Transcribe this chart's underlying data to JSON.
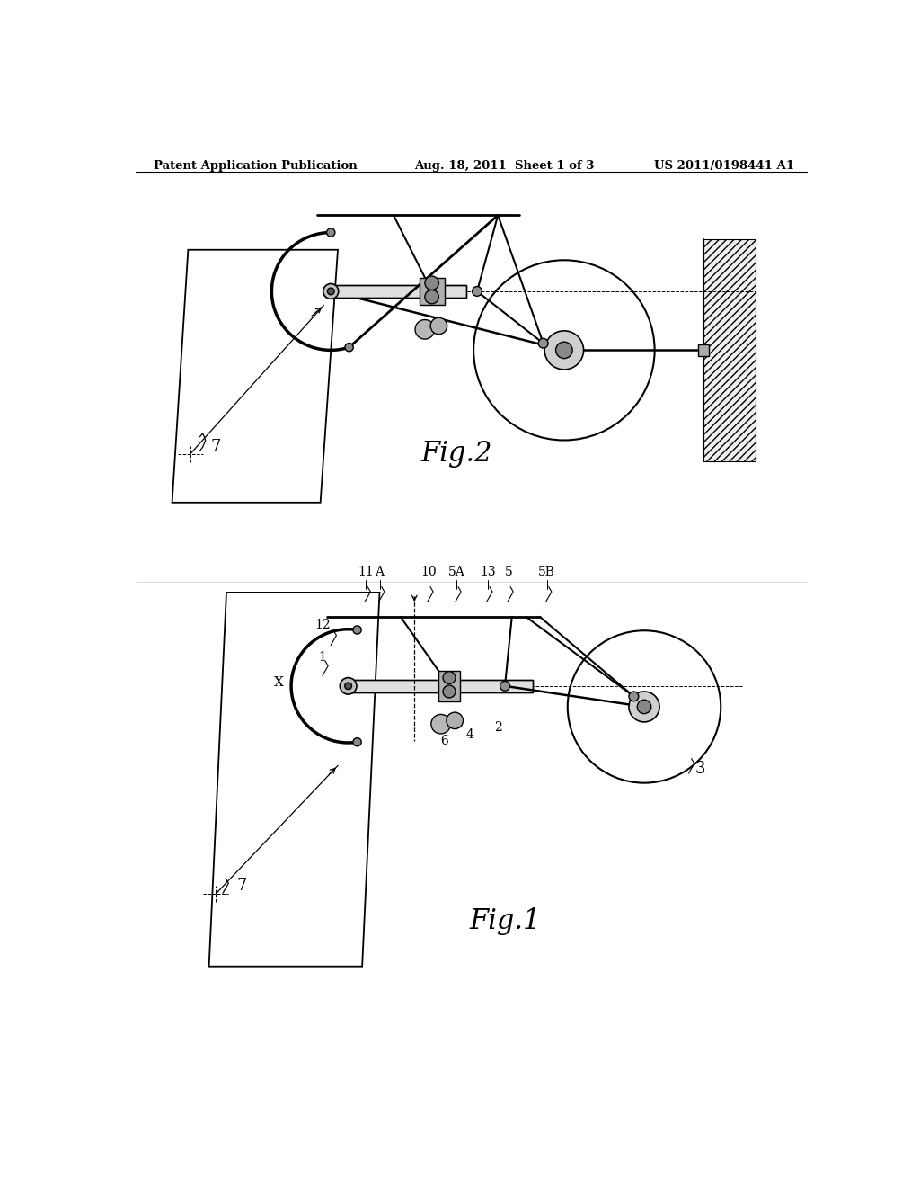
{
  "background_color": "#ffffff",
  "title_left": "Patent Application Publication",
  "title_mid": "Aug. 18, 2011  Sheet 1 of 3",
  "title_right": "US 2011/0198441 A1",
  "fig1_label": "Fig.1",
  "fig2_label": "Fig.2"
}
